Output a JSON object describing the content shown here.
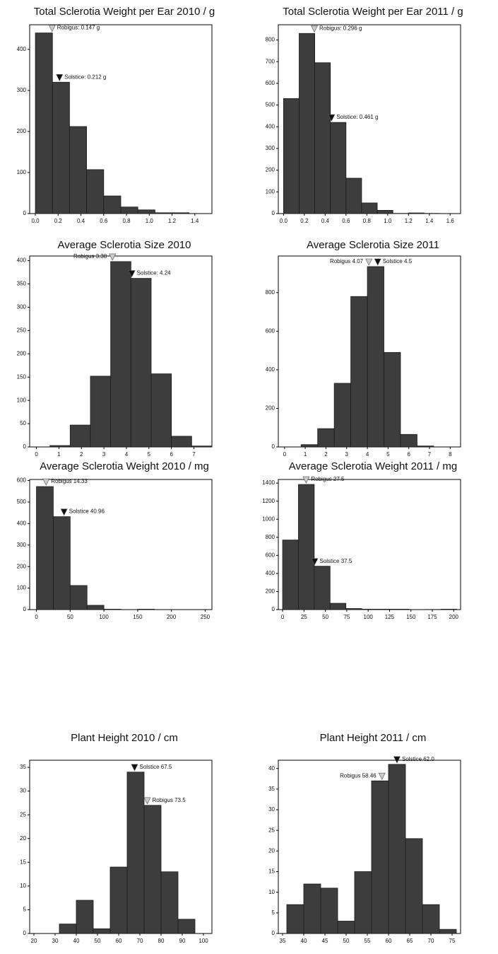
{
  "chart_data": [
    {
      "type": "histogram",
      "title": "Total Sclerotia Weight per Ear 2010 / g",
      "bins": [
        0,
        0.15,
        0.3,
        0.45,
        0.6,
        0.75,
        0.9,
        1.05,
        1.2,
        1.35
      ],
      "counts": [
        440,
        320,
        212,
        107,
        43,
        16,
        9,
        2,
        2
      ],
      "xlim": [
        -0.05,
        1.55
      ],
      "ylim": [
        0,
        460
      ],
      "xticks": [
        {
          "value": 0,
          "label": "0.0"
        },
        {
          "value": 0.2,
          "label": "0.2"
        },
        {
          "value": 0.4,
          "label": "0.4"
        },
        {
          "value": 0.6,
          "label": "0.6"
        },
        {
          "value": 0.8,
          "label": "0.8"
        },
        {
          "value": 1,
          "label": "1.0"
        },
        {
          "value": 1.2,
          "label": "1.2"
        },
        {
          "value": 1.4,
          "label": "1.4"
        }
      ],
      "yticks": [
        0,
        100,
        200,
        300,
        400
      ],
      "color": "#3d3d3d",
      "annotations": [
        {
          "label": "Robigus: 0.147 g",
          "x": 0.147,
          "color": "#cccccc"
        },
        {
          "label": "Solstice: 0.212 g",
          "x": 0.212,
          "color": "#111111"
        }
      ]
    },
    {
      "type": "histogram",
      "title": "Total Sclerotia Weight per Ear 2011 / g",
      "bins": [
        0,
        0.15,
        0.3,
        0.45,
        0.6,
        0.75,
        0.9,
        1.05,
        1.2,
        1.35,
        1.5
      ],
      "counts": [
        530,
        830,
        695,
        420,
        163,
        49,
        15,
        1,
        3,
        1
      ],
      "xlim": [
        -0.05,
        1.7
      ],
      "ylim": [
        0,
        870
      ],
      "xticks": [
        {
          "value": 0,
          "label": "0.0"
        },
        {
          "value": 0.2,
          "label": "0.2"
        },
        {
          "value": 0.4,
          "label": "0.4"
        },
        {
          "value": 0.6,
          "label": "0.6"
        },
        {
          "value": 0.8,
          "label": "0.8"
        },
        {
          "value": 1,
          "label": "1.0"
        },
        {
          "value": 1.2,
          "label": "1.2"
        },
        {
          "value": 1.4,
          "label": "1.4"
        },
        {
          "value": 1.6,
          "label": "1.6"
        }
      ],
      "yticks": [
        0,
        100,
        200,
        300,
        400,
        500,
        600,
        700,
        800
      ],
      "color": "#3d3d3d",
      "annotations": [
        {
          "label": "Robigus: 0.296 g",
          "x": 0.296,
          "color": "#cccccc"
        },
        {
          "label": "Solstice: 0.461 g",
          "x": 0.461,
          "color": "#111111"
        }
      ]
    },
    {
      "type": "histogram",
      "title": "Average Sclerotia Size 2010",
      "bins": [
        0.6,
        1.5,
        2.4,
        3.3,
        4.2,
        5.1,
        6,
        6.9,
        7.8
      ],
      "counts": [
        3,
        47,
        152,
        398,
        362,
        157,
        23,
        2
      ],
      "xlim": [
        -0.3,
        7.8
      ],
      "ylim": [
        0,
        410
      ],
      "xticks": [
        0,
        1,
        2,
        3,
        4,
        5,
        6,
        7
      ],
      "yticks": [
        0,
        50,
        100,
        150,
        200,
        250,
        300,
        350,
        400
      ],
      "color": "#3d3d3d",
      "annotations": [
        {
          "label": "Robigus 3.38",
          "x": 3.38,
          "color": "#cccccc"
        },
        {
          "label": "Solstice: 4.24",
          "x": 4.24,
          "color": "#111111"
        }
      ]
    },
    {
      "type": "histogram",
      "title": "Average Sclerotia Size 2011",
      "bins": [
        0.8,
        1.6,
        2.4,
        3.2,
        4,
        4.8,
        5.6,
        6.4,
        7.2
      ],
      "counts": [
        12,
        95,
        330,
        780,
        935,
        490,
        65,
        5
      ],
      "xlim": [
        -0.3,
        8.5
      ],
      "ylim": [
        0,
        990
      ],
      "xticks": [
        0,
        1,
        2,
        3,
        4,
        5,
        6,
        7,
        8
      ],
      "yticks": [
        0,
        200,
        400,
        600,
        800
      ],
      "color": "#3d3d3d",
      "annotations": [
        {
          "label": "Robigus 4.07",
          "x": 4.07,
          "color": "#cccccc"
        },
        {
          "label": "Solstice 4.5",
          "x": 4.5,
          "color": "#111111"
        }
      ]
    },
    {
      "type": "histogram",
      "title": "Average Sclerotia Weight 2010 / mg",
      "bins": [
        0,
        25,
        50,
        75,
        100,
        125,
        150,
        175
      ],
      "counts": [
        572,
        432,
        112,
        20,
        2,
        0,
        2
      ],
      "xlim": [
        -10,
        260
      ],
      "ylim": [
        0,
        605
      ],
      "xticks": [
        0,
        50,
        100,
        150,
        200,
        250
      ],
      "yticks": [
        0,
        100,
        200,
        300,
        400,
        500,
        600
      ],
      "color": "#3d3d3d",
      "annotations": [
        {
          "label": "Robigus 14.33",
          "x": 14.33,
          "color": "#cccccc"
        },
        {
          "label": "Solstice 40.96",
          "x": 40.96,
          "color": "#111111"
        }
      ]
    },
    {
      "type": "histogram",
      "title": "Average Sclerotia Weight 2011 / mg",
      "bins": [
        0,
        18.5,
        37,
        55.5,
        74,
        92.5,
        111,
        129.5,
        148,
        166.5,
        185,
        203.5
      ],
      "counts": [
        770,
        1385,
        480,
        70,
        12,
        5,
        5,
        5,
        0,
        2,
        5
      ],
      "xlim": [
        -5,
        208
      ],
      "ylim": [
        0,
        1440
      ],
      "xticks": [
        0,
        25,
        50,
        75,
        100,
        125,
        150,
        175,
        200
      ],
      "yticks": [
        0,
        200,
        400,
        600,
        800,
        1000,
        1200,
        1400
      ],
      "color": "#3d3d3d",
      "annotations": [
        {
          "label": "Robigus 27.5",
          "x": 27.5,
          "color": "#cccccc"
        },
        {
          "label": "Solstice 37.5",
          "x": 37.5,
          "color": "#111111"
        }
      ]
    },
    {
      "type": "histogram",
      "title": "Plant Height 2010 / cm",
      "bins": [
        32,
        40,
        48,
        56,
        64,
        72,
        80,
        88,
        96
      ],
      "counts": [
        2,
        7,
        1,
        14,
        34,
        27,
        13,
        3
      ],
      "xlim": [
        18,
        104
      ],
      "ylim": [
        0,
        36.5
      ],
      "xticks": [
        20,
        30,
        40,
        50,
        60,
        70,
        80,
        90,
        100
      ],
      "yticks": [
        0,
        5,
        10,
        15,
        20,
        25,
        30,
        35
      ],
      "color": "#3d3d3d",
      "annotations": [
        {
          "label": "Solstice 67.5",
          "x": 67.5,
          "color": "#111111"
        },
        {
          "label": "Robigus 73.5",
          "x": 73.5,
          "color": "#cccccc"
        }
      ]
    },
    {
      "type": "histogram",
      "title": "Plant Height 2011 / cm",
      "bins": [
        36,
        40,
        44,
        48,
        52,
        56,
        60,
        64,
        68,
        72,
        76
      ],
      "counts": [
        7,
        12,
        11,
        3,
        15,
        37,
        41,
        23,
        7,
        1
      ],
      "xlim": [
        34,
        77
      ],
      "ylim": [
        0,
        42
      ],
      "xticks": [
        35,
        40,
        45,
        50,
        55,
        60,
        65,
        70,
        75
      ],
      "yticks": [
        0,
        5,
        10,
        15,
        20,
        25,
        30,
        35,
        40
      ],
      "color": "#3d3d3d",
      "annotations": [
        {
          "label": "Robigus 58.46",
          "x": 58.46,
          "color": "#cccccc"
        },
        {
          "label": "Solstice 62.0",
          "x": 62.0,
          "color": "#111111"
        }
      ]
    }
  ]
}
